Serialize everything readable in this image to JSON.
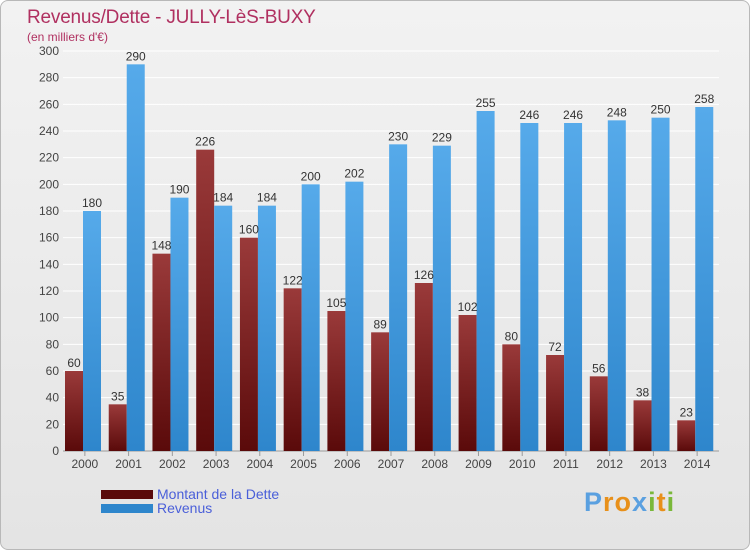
{
  "header": {
    "title": "Revenus/Dette - JULLY-LèS-BUXY",
    "subtitle": "(en milliers d'€)"
  },
  "legend": {
    "items": [
      {
        "label": "Montant de la Dette",
        "color": "#7a1a1a"
      },
      {
        "label": "Revenus",
        "color": "#3f96dc"
      }
    ]
  },
  "logo": {
    "letters": [
      "P",
      "r",
      "o",
      "x",
      "i",
      "t",
      "i"
    ]
  },
  "colors": {
    "debt_top": "#9a3a3a",
    "debt_bottom": "#5a0a0a",
    "rev_top": "#56aaea",
    "rev_bottom": "#2e86cc",
    "grid": "#ffffff",
    "axis_text": "#444444",
    "label_text": "#333333"
  },
  "chart_data": {
    "type": "bar",
    "title": "Revenus/Dette - JULLY-LèS-BUXY",
    "ylabel": "(en milliers d'€)",
    "xlabel": "",
    "ylim": [
      0,
      300
    ],
    "ytick_step": 20,
    "categories": [
      "2000",
      "2001",
      "2002",
      "2003",
      "2004",
      "2005",
      "2006",
      "2007",
      "2008",
      "2009",
      "2010",
      "2011",
      "2012",
      "2013",
      "2014"
    ],
    "series": [
      {
        "name": "Montant de la Dette",
        "values": [
          60,
          35,
          148,
          226,
          160,
          122,
          105,
          89,
          126,
          102,
          80,
          72,
          56,
          38,
          23
        ]
      },
      {
        "name": "Revenus",
        "values": [
          180,
          290,
          190,
          184,
          184,
          200,
          202,
          230,
          229,
          255,
          246,
          246,
          248,
          250,
          258
        ]
      }
    ],
    "legend_position": "bottom-left",
    "grid": true
  }
}
